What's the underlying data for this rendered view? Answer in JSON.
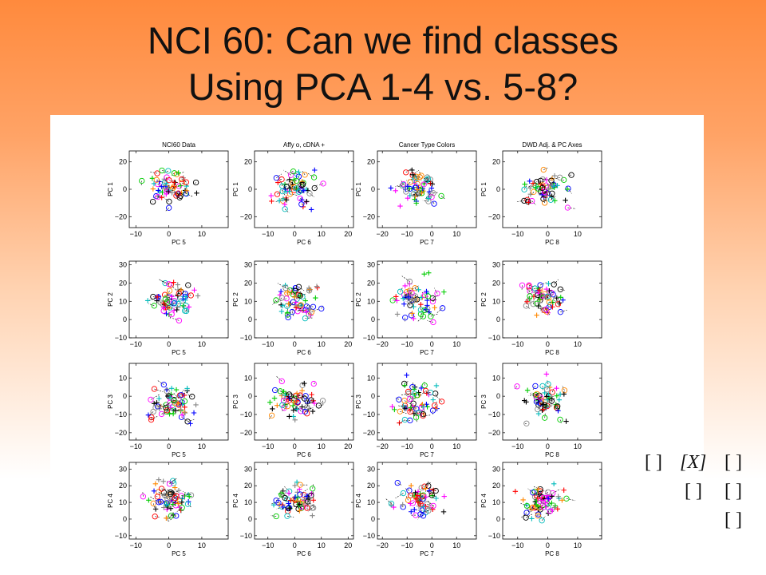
{
  "slide": {
    "title_line1": "NCI 60:  Can we find classes",
    "title_line2": "Using PCA 1-4 vs. 5-8?"
  },
  "figure": {
    "column_titles": [
      "NCI60 Data",
      "Affy o,  cDNA +",
      "Cancer Type Colors",
      "DWD Adj. & PC Axes"
    ],
    "markers": [
      "o",
      "+"
    ],
    "series_colors": [
      "#0000ff",
      "#00cc00",
      "#ff0000",
      "#00bbbb",
      "#ff00ff",
      "#ff8800",
      "#000000",
      "#888888"
    ]
  },
  "chart_data": [
    {
      "type": "scatter",
      "title": "NCI60 Data",
      "xlabel": "PC 5",
      "ylabel": "PC 1",
      "xlim": [
        -12,
        18
      ],
      "ylim": [
        -28,
        28
      ],
      "xticks": [
        -10,
        0,
        10
      ],
      "yticks": [
        -20,
        0,
        20
      ],
      "xtick_labels": [
        "−10",
        "0",
        "10"
      ],
      "ytick_labels": [
        "−20",
        "0",
        "20"
      ]
    },
    {
      "type": "scatter",
      "title": "Affy o,  cDNA +",
      "xlabel": "PC 6",
      "ylabel": "PC 1",
      "xlim": [
        -15,
        22
      ],
      "ylim": [
        -28,
        28
      ],
      "xticks": [
        -10,
        0,
        10,
        20
      ],
      "yticks": [
        -20,
        0,
        20
      ],
      "xtick_labels": [
        "−10",
        "0",
        "10",
        "20"
      ],
      "ytick_labels": [
        "−20",
        "0",
        "20"
      ]
    },
    {
      "type": "scatter",
      "title": "Cancer Type Colors",
      "xlabel": "PC 7",
      "ylabel": "PC 1",
      "xlim": [
        -22,
        18
      ],
      "ylim": [
        -28,
        28
      ],
      "xticks": [
        -20,
        -10,
        0,
        10
      ],
      "yticks": [
        -20,
        0,
        20
      ],
      "xtick_labels": [
        "−20",
        "−10",
        "0",
        "10"
      ],
      "ytick_labels": [
        "−20",
        "0",
        "20"
      ]
    },
    {
      "type": "scatter",
      "title": "DWD Adj. & PC Axes",
      "xlabel": "PC 8",
      "ylabel": "PC 1",
      "xlim": [
        -15,
        18
      ],
      "ylim": [
        -28,
        28
      ],
      "xticks": [
        -10,
        0,
        10
      ],
      "yticks": [
        -20,
        0,
        20
      ],
      "xtick_labels": [
        "−10",
        "0",
        "10"
      ],
      "ytick_labels": [
        "−20",
        "0",
        "20"
      ]
    },
    {
      "type": "scatter",
      "title": "",
      "xlabel": "PC 5",
      "ylabel": "PC 2",
      "xlim": [
        -12,
        18
      ],
      "ylim": [
        -10,
        32
      ],
      "xticks": [
        -10,
        0,
        10
      ],
      "yticks": [
        -10,
        0,
        10,
        20,
        30
      ],
      "xtick_labels": [
        "−10",
        "0",
        "10"
      ],
      "ytick_labels": [
        "−10",
        "0",
        "10",
        "20",
        "30"
      ]
    },
    {
      "type": "scatter",
      "title": "",
      "xlabel": "PC 6",
      "ylabel": "PC 2",
      "xlim": [
        -15,
        22
      ],
      "ylim": [
        -10,
        32
      ],
      "xticks": [
        -10,
        0,
        10,
        20
      ],
      "yticks": [
        -10,
        0,
        10,
        20,
        30
      ],
      "xtick_labels": [
        "−10",
        "0",
        "10",
        "20"
      ],
      "ytick_labels": [
        "−10",
        "0",
        "10",
        "20",
        "30"
      ]
    },
    {
      "type": "scatter",
      "title": "",
      "xlabel": "PC 7",
      "ylabel": "PC 2",
      "xlim": [
        -22,
        18
      ],
      "ylim": [
        -10,
        32
      ],
      "xticks": [
        -20,
        -10,
        0,
        10
      ],
      "yticks": [
        -10,
        0,
        10,
        20,
        30
      ],
      "xtick_labels": [
        "−20",
        "−10",
        "0",
        "10"
      ],
      "ytick_labels": [
        "−10",
        "0",
        "10",
        "20",
        "30"
      ]
    },
    {
      "type": "scatter",
      "title": "",
      "xlabel": "PC 8",
      "ylabel": "PC 2",
      "xlim": [
        -15,
        18
      ],
      "ylim": [
        -10,
        32
      ],
      "xticks": [
        -10,
        0,
        10
      ],
      "yticks": [
        -10,
        0,
        10,
        20,
        30
      ],
      "xtick_labels": [
        "−10",
        "0",
        "10"
      ],
      "ytick_labels": [
        "−10",
        "0",
        "10",
        "20",
        "30"
      ]
    },
    {
      "type": "scatter",
      "title": "",
      "xlabel": "PC 5",
      "ylabel": "PC 3",
      "xlim": [
        -12,
        18
      ],
      "ylim": [
        -24,
        18
      ],
      "xticks": [
        -10,
        0,
        10
      ],
      "yticks": [
        -20,
        -10,
        0,
        10
      ],
      "xtick_labels": [
        "−10",
        "0",
        "10"
      ],
      "ytick_labels": [
        "−20",
        "−10",
        "0",
        "10"
      ]
    },
    {
      "type": "scatter",
      "title": "",
      "xlabel": "PC 6",
      "ylabel": "PC 3",
      "xlim": [
        -15,
        22
      ],
      "ylim": [
        -24,
        18
      ],
      "xticks": [
        -10,
        0,
        10,
        20
      ],
      "yticks": [
        -20,
        -10,
        0,
        10
      ],
      "xtick_labels": [
        "−10",
        "0",
        "10",
        "20"
      ],
      "ytick_labels": [
        "−20",
        "−10",
        "0",
        "10"
      ]
    },
    {
      "type": "scatter",
      "title": "",
      "xlabel": "PC 7",
      "ylabel": "PC 3",
      "xlim": [
        -22,
        18
      ],
      "ylim": [
        -24,
        18
      ],
      "xticks": [
        -20,
        -10,
        0,
        10
      ],
      "yticks": [
        -20,
        -10,
        0,
        10
      ],
      "xtick_labels": [
        "−20",
        "−10",
        "0",
        "10"
      ],
      "ytick_labels": [
        "−20",
        "−10",
        "0",
        "10"
      ]
    },
    {
      "type": "scatter",
      "title": "",
      "xlabel": "PC 8",
      "ylabel": "PC 3",
      "xlim": [
        -15,
        18
      ],
      "ylim": [
        -24,
        18
      ],
      "xticks": [
        -10,
        0,
        10
      ],
      "yticks": [
        -20,
        -10,
        0,
        10
      ],
      "xtick_labels": [
        "−10",
        "0",
        "10"
      ],
      "ytick_labels": [
        "−20",
        "−10",
        "0",
        "10"
      ]
    },
    {
      "type": "scatter",
      "title": "",
      "xlabel": "PC 5",
      "ylabel": "PC 4",
      "xlim": [
        -12,
        18
      ],
      "ylim": [
        -12,
        34
      ],
      "xticks": [
        -10,
        0,
        10
      ],
      "yticks": [
        -10,
        0,
        10,
        20,
        30
      ],
      "xtick_labels": [
        "−10",
        "0",
        "10"
      ],
      "ytick_labels": [
        "−10",
        "0",
        "10",
        "20",
        "30"
      ]
    },
    {
      "type": "scatter",
      "title": "",
      "xlabel": "PC 6",
      "ylabel": "PC 4",
      "xlim": [
        -15,
        22
      ],
      "ylim": [
        -12,
        34
      ],
      "xticks": [
        -10,
        0,
        10,
        20
      ],
      "yticks": [
        -10,
        0,
        10,
        20,
        30
      ],
      "xtick_labels": [
        "−10",
        "0",
        "10",
        "20"
      ],
      "ytick_labels": [
        "−10",
        "0",
        "10",
        "20",
        "30"
      ]
    },
    {
      "type": "scatter",
      "title": "",
      "xlabel": "PC 7",
      "ylabel": "PC 4",
      "xlim": [
        -22,
        18
      ],
      "ylim": [
        -12,
        34
      ],
      "xticks": [
        -20,
        -10,
        0,
        10
      ],
      "yticks": [
        -10,
        0,
        10,
        20,
        30
      ],
      "xtick_labels": [
        "−20",
        "−10",
        "0",
        "10"
      ],
      "ytick_labels": [
        "−10",
        "0",
        "10",
        "20",
        "30"
      ]
    },
    {
      "type": "scatter",
      "title": "",
      "xlabel": "PC 8",
      "ylabel": "PC 4",
      "xlim": [
        -15,
        18
      ],
      "ylim": [
        -12,
        34
      ],
      "xticks": [
        -10,
        0,
        10
      ],
      "yticks": [
        -10,
        0,
        10,
        20,
        30
      ],
      "xtick_labels": [
        "−10",
        "0",
        "10"
      ],
      "ytick_labels": [
        "−10",
        "0",
        "10",
        "20",
        "30"
      ]
    }
  ],
  "matrix_note": {
    "row1_a": "[ ]",
    "row1_b": "[X]",
    "row1_c": "[ ]",
    "row2_a": "[ ]",
    "row2_b": "[ ]",
    "row3_a": "[ ]"
  }
}
